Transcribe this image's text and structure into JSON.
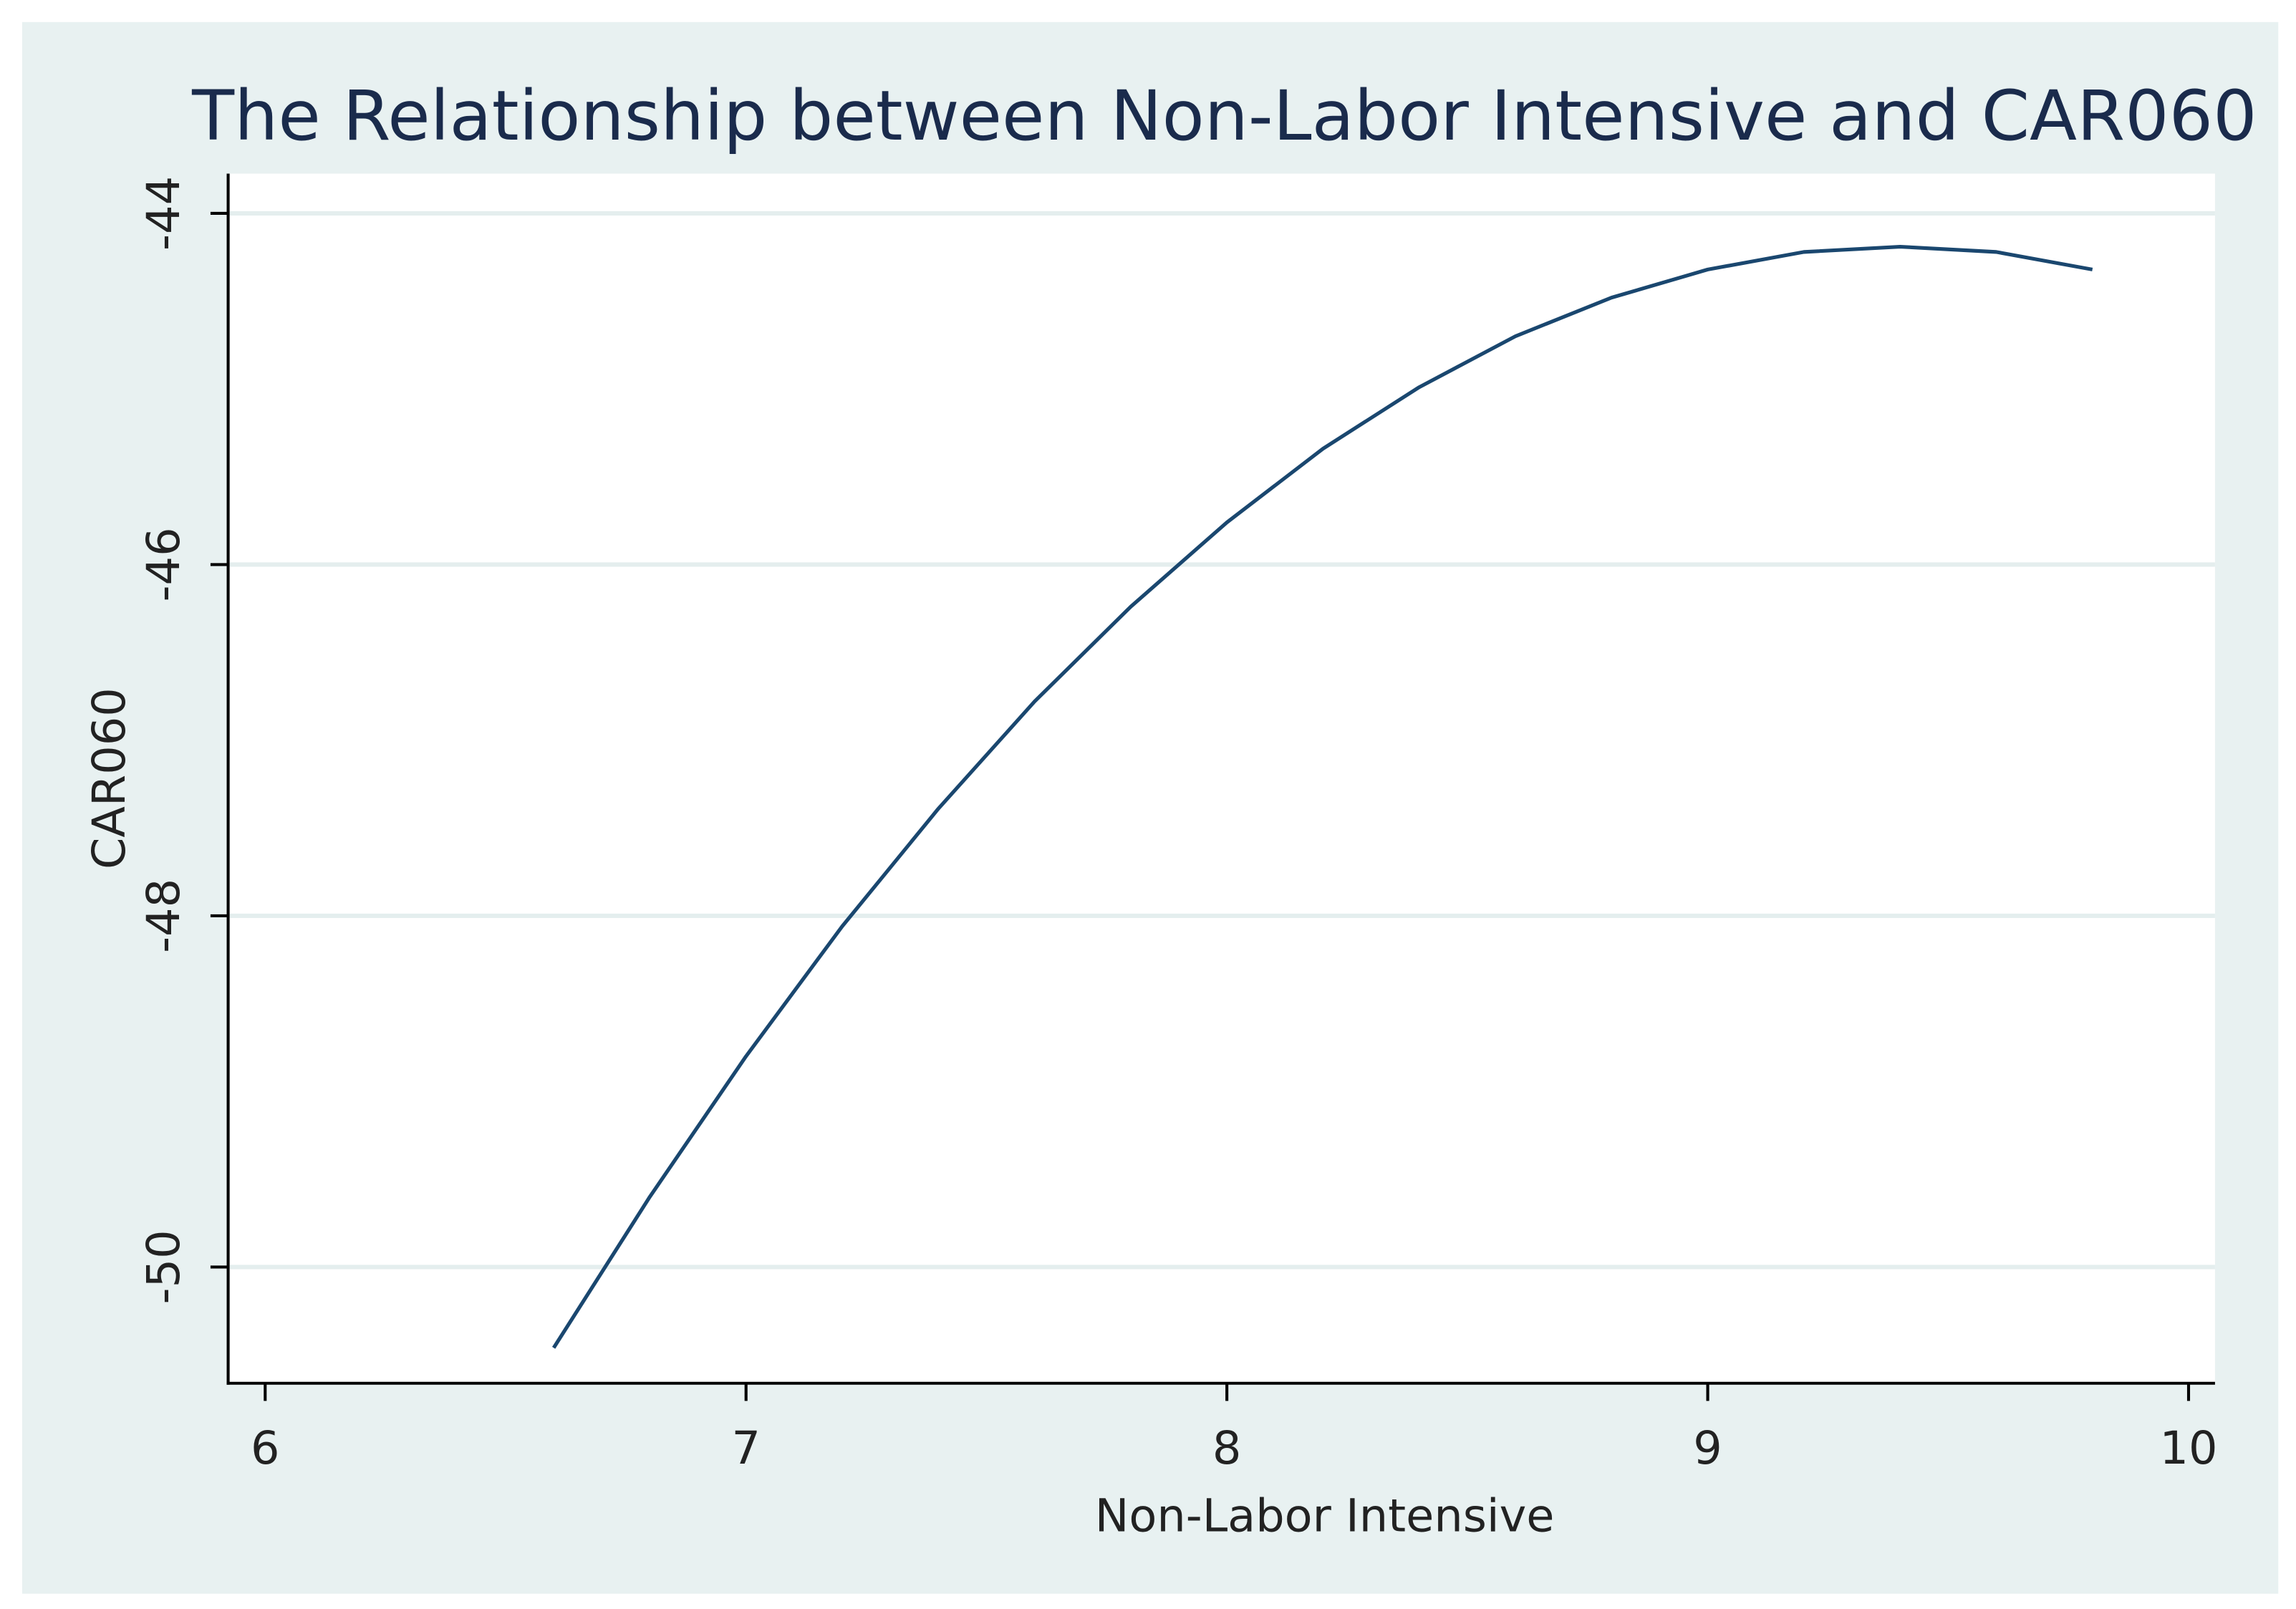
{
  "chart_data": {
    "type": "line",
    "title": "The Relationship between Non-Labor Intensive and CAR060",
    "x_label": "Non-Labor Intensive",
    "y_label": "CAR060",
    "x": [
      6.6,
      6.8,
      7.0,
      7.2,
      7.4,
      7.6,
      7.8,
      8.0,
      8.2,
      8.4,
      8.6,
      8.8,
      9.0,
      9.2,
      9.4,
      9.6,
      9.8
    ],
    "series": [
      {
        "name": "CAR060",
        "color": "#1a476f",
        "values": [
          -50.46,
          -49.6,
          -48.8,
          -48.06,
          -47.39,
          -46.78,
          -46.24,
          -45.76,
          -45.34,
          -44.99,
          -44.7,
          -44.48,
          -44.32,
          -44.22,
          -44.19,
          -44.22,
          -44.32
        ]
      }
    ],
    "xlim": [
      5.923,
      10.055
    ],
    "xticks": [
      6,
      7,
      8,
      9,
      10
    ],
    "ylim": [
      -50.662,
      -43.774
    ],
    "yticks": [
      -50,
      -48,
      -46,
      -44
    ],
    "grid": true
  }
}
